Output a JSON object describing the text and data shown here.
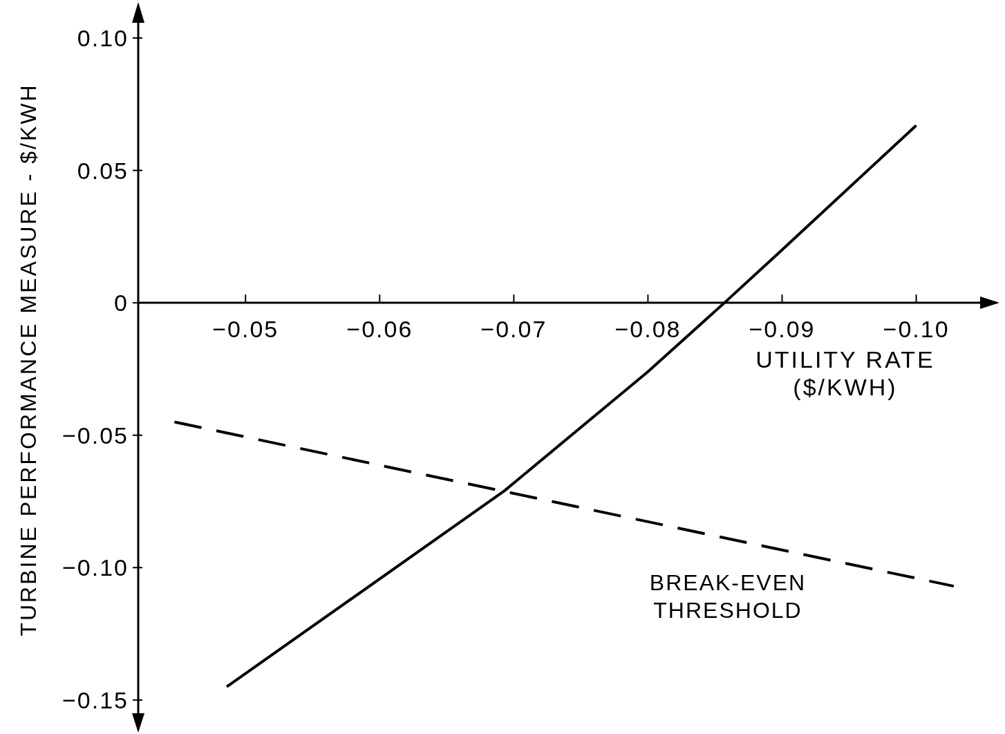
{
  "chart_data": {
    "type": "line",
    "xlabel": "UTILITY RATE ($/KWH)",
    "ylabel": "TURBINE PERFORMANCE MEASURE - $/KWH",
    "xlim": [
      -0.042,
      -0.106
    ],
    "ylim": [
      -0.155,
      0.112
    ],
    "xticks": [
      {
        "value": -0.05,
        "label": "−0.05"
      },
      {
        "value": -0.06,
        "label": "−0.06"
      },
      {
        "value": -0.07,
        "label": "−0.07"
      },
      {
        "value": -0.08,
        "label": "−0.08"
      },
      {
        "value": -0.09,
        "label": "−0.09"
      },
      {
        "value": -0.1,
        "label": "−0.10"
      }
    ],
    "yticks": [
      {
        "value": 0.1,
        "label": "0.10"
      },
      {
        "value": 0.05,
        "label": "0.05"
      },
      {
        "value": 0,
        "label": "0"
      },
      {
        "value": -0.05,
        "label": "−0.05"
      },
      {
        "value": -0.1,
        "label": "−0.10"
      },
      {
        "value": -0.15,
        "label": "−0.15"
      }
    ],
    "series": [
      {
        "color": "#000000",
        "line_style": "solid",
        "x": [
          -0.0486,
          -0.0693,
          -0.08,
          -0.0857,
          -0.09,
          -0.1
        ],
        "values": [
          -0.145,
          -0.071,
          -0.026,
          0,
          0.02,
          0.067
        ]
      },
      {
        "color": "#000000",
        "line_style": "dashed",
        "x": [
          -0.0447,
          -0.1028
        ],
        "values": [
          -0.045,
          -0.107
        ]
      }
    ],
    "annotations": [
      "BREAK-EVEN THRESHOLD"
    ],
    "grid": false,
    "legend": false,
    "marker": "none"
  }
}
